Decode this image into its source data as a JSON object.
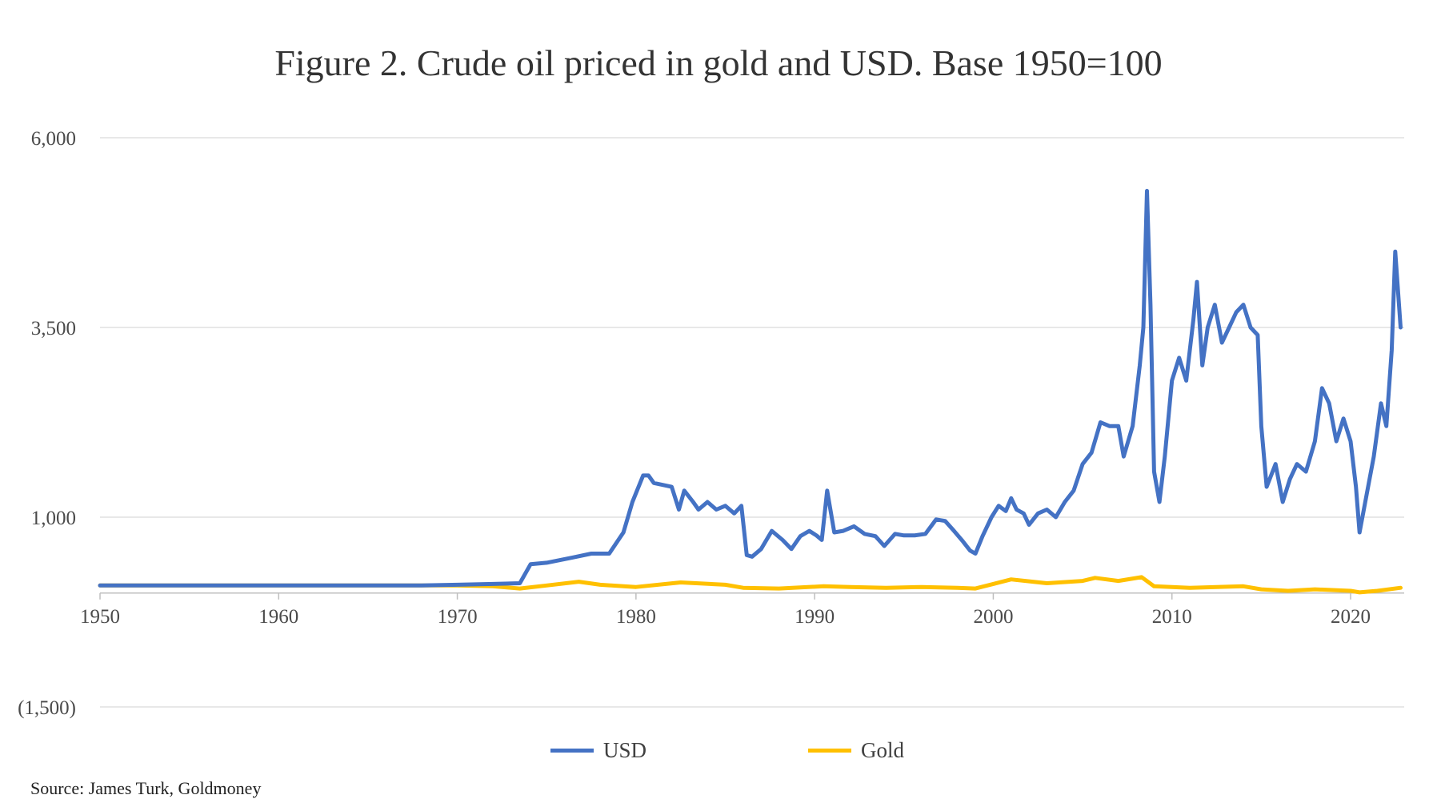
{
  "chart_data": {
    "type": "line",
    "title": "Figure 2. Crude oil priced in gold and USD. Base 1950=100",
    "xlabel": "",
    "ylabel": "",
    "xlim": [
      1950,
      2023
    ],
    "ylim": [
      -1500,
      6000
    ],
    "x_ticks": [
      "1950",
      "1960",
      "1970",
      "1980",
      "1990",
      "2000",
      "2010",
      "2020"
    ],
    "x_tick_values": [
      1950,
      1960,
      1970,
      1980,
      1990,
      2000,
      2010,
      2020
    ],
    "y_ticks": [
      "6,000",
      "3,500",
      "1,000",
      "(1,500)"
    ],
    "y_tick_values": [
      6000,
      3500,
      1000,
      -1500
    ],
    "grid": "horizontal",
    "legend_position": "bottom",
    "source": "Source: James Turk, Goldmoney",
    "series": [
      {
        "name": "USD",
        "color": "#4472C4",
        "points": [
          [
            1950,
            100
          ],
          [
            1955,
            100
          ],
          [
            1960,
            100
          ],
          [
            1965,
            100
          ],
          [
            1968,
            100
          ],
          [
            1970,
            110
          ],
          [
            1972,
            120
          ],
          [
            1973.5,
            130
          ],
          [
            1974.1,
            380
          ],
          [
            1975,
            400
          ],
          [
            1976.5,
            470
          ],
          [
            1977.5,
            520
          ],
          [
            1978.5,
            520
          ],
          [
            1979.3,
            800
          ],
          [
            1979.8,
            1200
          ],
          [
            1980.4,
            1550
          ],
          [
            1980.7,
            1550
          ],
          [
            1981,
            1450
          ],
          [
            1982,
            1400
          ],
          [
            1982.4,
            1100
          ],
          [
            1982.7,
            1350
          ],
          [
            1983.2,
            1200
          ],
          [
            1983.5,
            1100
          ],
          [
            1984,
            1200
          ],
          [
            1984.5,
            1100
          ],
          [
            1985,
            1150
          ],
          [
            1985.5,
            1050
          ],
          [
            1985.9,
            1150
          ],
          [
            1986.2,
            500
          ],
          [
            1986.5,
            480
          ],
          [
            1987,
            580
          ],
          [
            1987.6,
            820
          ],
          [
            1988.2,
            700
          ],
          [
            1988.7,
            580
          ],
          [
            1989.2,
            750
          ],
          [
            1989.7,
            820
          ],
          [
            1990.1,
            760
          ],
          [
            1990.4,
            700
          ],
          [
            1990.7,
            1350
          ],
          [
            1991.1,
            800
          ],
          [
            1991.6,
            820
          ],
          [
            1992.2,
            880
          ],
          [
            1992.8,
            780
          ],
          [
            1993.4,
            750
          ],
          [
            1993.9,
            620
          ],
          [
            1994.5,
            780
          ],
          [
            1995,
            760
          ],
          [
            1995.6,
            760
          ],
          [
            1996.2,
            780
          ],
          [
            1996.8,
            970
          ],
          [
            1997.3,
            950
          ],
          [
            1997.8,
            820
          ],
          [
            1998.3,
            680
          ],
          [
            1998.7,
            560
          ],
          [
            1999,
            520
          ],
          [
            1999.4,
            750
          ],
          [
            1999.9,
            1000
          ],
          [
            2000.3,
            1150
          ],
          [
            2000.7,
            1080
          ],
          [
            2001,
            1250
          ],
          [
            2001.3,
            1100
          ],
          [
            2001.7,
            1050
          ],
          [
            2002,
            900
          ],
          [
            2002.5,
            1050
          ],
          [
            2003,
            1100
          ],
          [
            2003.5,
            1000
          ],
          [
            2004,
            1200
          ],
          [
            2004.5,
            1350
          ],
          [
            2005,
            1700
          ],
          [
            2005.5,
            1850
          ],
          [
            2006,
            2250
          ],
          [
            2006.5,
            2200
          ],
          [
            2007,
            2200
          ],
          [
            2007.3,
            1800
          ],
          [
            2007.8,
            2200
          ],
          [
            2008.2,
            3000
          ],
          [
            2008.4,
            3500
          ],
          [
            2008.6,
            5300
          ],
          [
            2008.8,
            3800
          ],
          [
            2009,
            1600
          ],
          [
            2009.3,
            1200
          ],
          [
            2009.6,
            1800
          ],
          [
            2010,
            2800
          ],
          [
            2010.4,
            3100
          ],
          [
            2010.8,
            2800
          ],
          [
            2011.2,
            3600
          ],
          [
            2011.4,
            4100
          ],
          [
            2011.7,
            3000
          ],
          [
            2012,
            3500
          ],
          [
            2012.4,
            3800
          ],
          [
            2012.8,
            3300
          ],
          [
            2013.2,
            3500
          ],
          [
            2013.6,
            3700
          ],
          [
            2014,
            3800
          ],
          [
            2014.4,
            3500
          ],
          [
            2014.8,
            3400
          ],
          [
            2015,
            2200
          ],
          [
            2015.3,
            1400
          ],
          [
            2015.8,
            1700
          ],
          [
            2016.2,
            1200
          ],
          [
            2016.6,
            1500
          ],
          [
            2017,
            1700
          ],
          [
            2017.5,
            1600
          ],
          [
            2018,
            2000
          ],
          [
            2018.4,
            2700
          ],
          [
            2018.8,
            2500
          ],
          [
            2019.2,
            2000
          ],
          [
            2019.6,
            2300
          ],
          [
            2020,
            2000
          ],
          [
            2020.3,
            1400
          ],
          [
            2020.5,
            800
          ],
          [
            2020.9,
            1300
          ],
          [
            2021.3,
            1800
          ],
          [
            2021.7,
            2500
          ],
          [
            2022,
            2200
          ],
          [
            2022.3,
            3200
          ],
          [
            2022.5,
            4500
          ],
          [
            2022.8,
            3500
          ]
        ]
      },
      {
        "name": "Gold",
        "color": "#FFC000",
        "points": [
          [
            1950,
            100
          ],
          [
            1955,
            100
          ],
          [
            1960,
            100
          ],
          [
            1965,
            100
          ],
          [
            1970,
            100
          ],
          [
            1972,
            90
          ],
          [
            1973.5,
            60
          ],
          [
            1975,
            100
          ],
          [
            1976.8,
            150
          ],
          [
            1978,
            110
          ],
          [
            1980,
            80
          ],
          [
            1982.5,
            140
          ],
          [
            1985,
            110
          ],
          [
            1986,
            70
          ],
          [
            1988,
            60
          ],
          [
            1990.5,
            90
          ],
          [
            1992,
            80
          ],
          [
            1994,
            70
          ],
          [
            1996,
            80
          ],
          [
            1998,
            70
          ],
          [
            1999,
            60
          ],
          [
            2000,
            120
          ],
          [
            2001,
            180
          ],
          [
            2003,
            130
          ],
          [
            2005,
            160
          ],
          [
            2005.7,
            200
          ],
          [
            2007,
            160
          ],
          [
            2008.3,
            210
          ],
          [
            2009,
            90
          ],
          [
            2010,
            80
          ],
          [
            2011,
            70
          ],
          [
            2012.5,
            80
          ],
          [
            2014,
            90
          ],
          [
            2015,
            50
          ],
          [
            2016.5,
            30
          ],
          [
            2018,
            50
          ],
          [
            2020,
            30
          ],
          [
            2020.5,
            10
          ],
          [
            2021.5,
            30
          ],
          [
            2022.8,
            70
          ]
        ]
      }
    ]
  }
}
